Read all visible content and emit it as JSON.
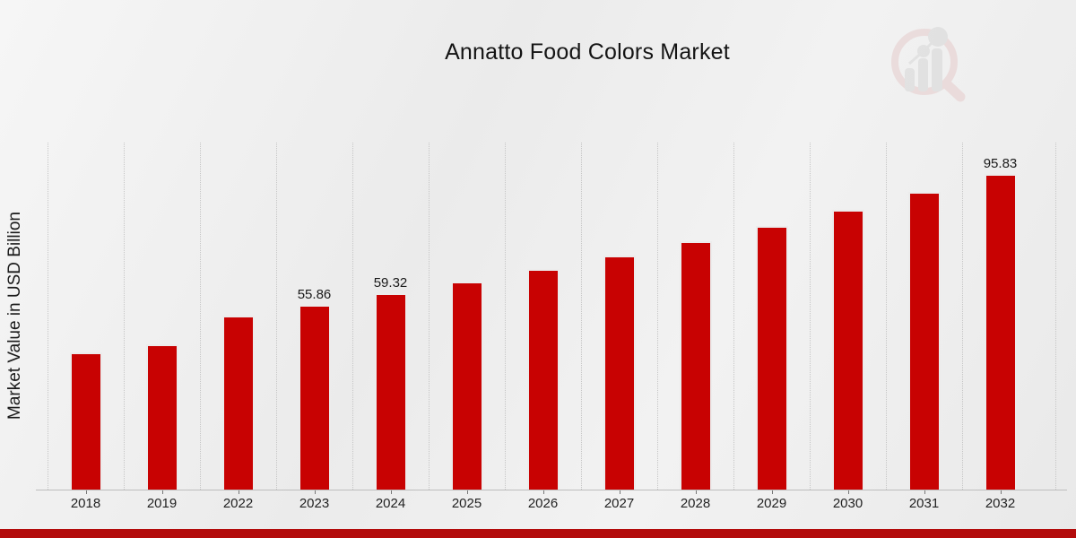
{
  "page": {
    "title": "Annatto Food Colors Market"
  },
  "branding": {
    "logo_name": "magnifier-bar-chart-watermark",
    "logo_ring_color": "#e6cbcb",
    "logo_glyph_color": "#d6d6d6"
  },
  "footer": {
    "strip_color": "#b30b0b"
  },
  "chart_data": {
    "type": "bar",
    "title": "Annatto Food Colors Market",
    "xlabel": "",
    "ylabel": "Market Value in USD Billion",
    "categories": [
      "2018",
      "2019",
      "2022",
      "2023",
      "2024",
      "2025",
      "2026",
      "2027",
      "2028",
      "2029",
      "2030",
      "2031",
      "2032"
    ],
    "values": [
      41.37,
      43.93,
      52.61,
      55.86,
      59.32,
      62.99,
      66.88,
      71.02,
      75.41,
      80.07,
      85.02,
      90.28,
      95.83
    ],
    "shown_labels": [
      "",
      "",
      "",
      "55.86",
      "59.32",
      "",
      "",
      "",
      "",
      "",
      "",
      "",
      "95.83"
    ],
    "bar_color": "#c80202",
    "bar_edge_color": "#ececec",
    "grid": "vertical-dotted",
    "grid_color": "#c6c6c6",
    "legend": "none",
    "ylim": [
      0,
      106
    ]
  }
}
